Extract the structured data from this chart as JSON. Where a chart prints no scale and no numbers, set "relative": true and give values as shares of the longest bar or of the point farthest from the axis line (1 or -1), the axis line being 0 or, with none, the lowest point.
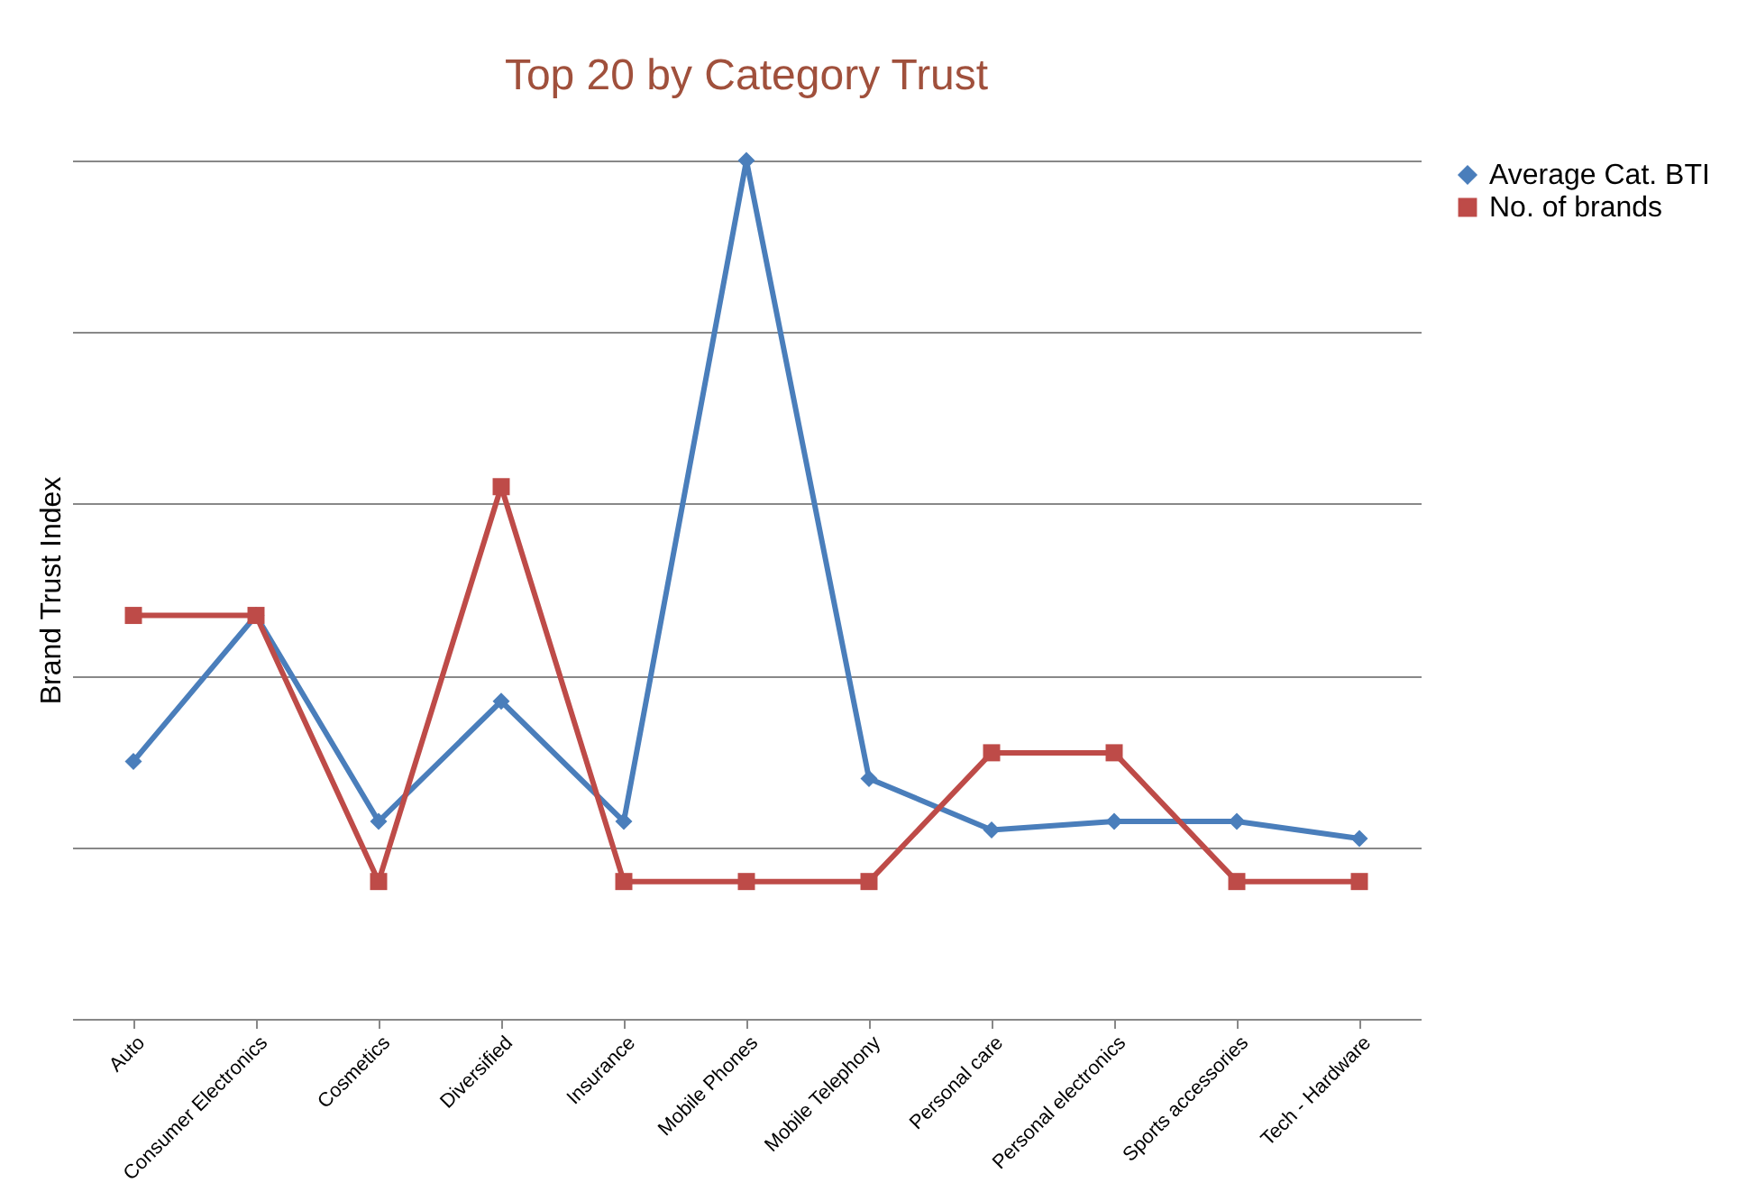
{
  "chart_data": {
    "type": "line",
    "title": "Top 20 by Category Trust",
    "ylabel": "Brand Trust Index",
    "relative": true,
    "grid": "y",
    "legend": "right",
    "line_style": "solid",
    "categories": [
      "Auto",
      "Consumer Electronics",
      "Cosmetics",
      "Diversified",
      "Insurance",
      "Mobile Phones",
      "Mobile Telephony",
      "Personal care",
      "Personal electronics",
      "Sports accessories",
      "Tech - Hardware"
    ],
    "series": [
      {
        "name": "Average Cat. BTI",
        "color": "#4a7ebb",
        "marker": "diamond",
        "values": [
          0.3,
          0.47,
          0.23,
          0.37,
          0.23,
          1,
          0.28,
          0.22,
          0.23,
          0.23,
          0.21
        ]
      },
      {
        "name": "No. of brands",
        "color": "#be4b48",
        "marker": "square",
        "values": [
          0.47,
          0.47,
          0.16,
          0.62,
          0.16,
          0.16,
          0.16,
          0.31,
          0.31,
          0.16,
          0.16
        ]
      }
    ]
  }
}
